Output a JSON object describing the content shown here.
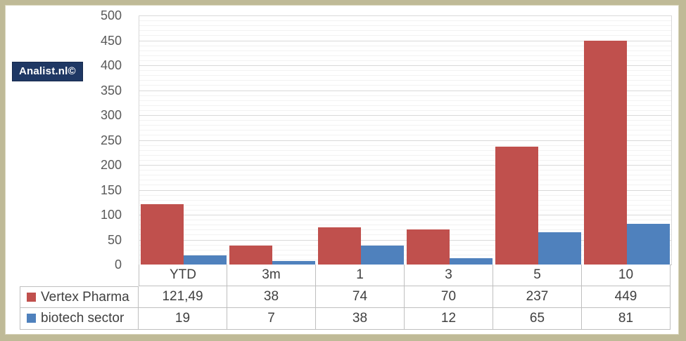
{
  "badge": {
    "label": "Analist.nl©"
  },
  "colors": {
    "series_red": "#c0504d",
    "series_blue": "#4f81bd",
    "badge_bg": "#1f3864",
    "frame_border": "#bfba97",
    "grid_major": "#d9d9d9",
    "grid_minor": "#f2f2f2",
    "table_border": "#bfbfbf",
    "text": "#404040"
  },
  "chart_data": {
    "type": "bar",
    "title": "",
    "xlabel": "",
    "ylabel": "",
    "categories": [
      "YTD",
      "3m",
      "1",
      "3",
      "5",
      "10"
    ],
    "series": [
      {
        "name": "Vertex Pharma",
        "color": "#c0504d",
        "values": [
          121.49,
          38,
          74,
          70,
          237,
          449
        ],
        "labels": [
          "121,49",
          "38",
          "74",
          "70",
          "237",
          "449"
        ]
      },
      {
        "name": "biotech sector",
        "color": "#4f81bd",
        "values": [
          19,
          7,
          38,
          12,
          65,
          81
        ],
        "labels": [
          "19",
          "7",
          "38",
          "12",
          "65",
          "81"
        ]
      }
    ],
    "ylim": [
      0,
      500
    ],
    "y_major_step": 50,
    "y_minor_step": 10,
    "grid": true,
    "legend_position": "table-left-column"
  }
}
